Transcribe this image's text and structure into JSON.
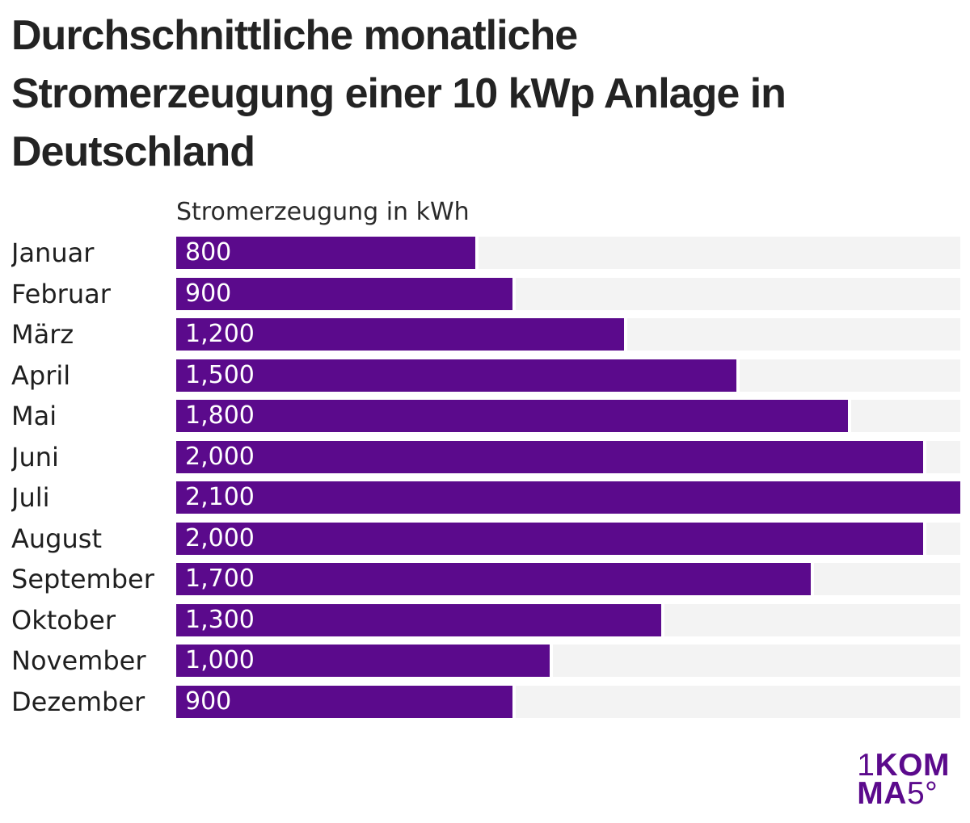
{
  "title_lines": [
    "Durchschnittliche monatliche",
    "Stromerzeugung einer 10 kWp Anlage in",
    "Deutschland"
  ],
  "chart_data": {
    "type": "bar",
    "orientation": "horizontal",
    "title": "Durchschnittliche monatliche Stromerzeugung einer 10 kWp Anlage in Deutschland",
    "xlabel": "Stromerzeugung in kWh",
    "ylabel": "",
    "categories": [
      "Januar",
      "Februar",
      "März",
      "April",
      "Mai",
      "Juni",
      "Juli",
      "August",
      "September",
      "Oktober",
      "November",
      "Dezember"
    ],
    "values": [
      800,
      900,
      1200,
      1500,
      1800,
      2000,
      2100,
      2000,
      1700,
      1300,
      1000,
      900
    ],
    "value_labels": [
      "800",
      "900",
      "1,200",
      "1,500",
      "1,800",
      "2,000",
      "2,100",
      "2,000",
      "1,700",
      "1,300",
      "1,000",
      "900"
    ],
    "xlim": [
      0,
      2100
    ],
    "grid": false,
    "legend": "none",
    "bar_color": "#5b0a8c",
    "track_color": "#f3f3f3",
    "value_label_color": "#ffffff"
  },
  "logo": {
    "line1_light": "1",
    "line1_bold": "KOM",
    "line2_bold": "MA",
    "line2_light": "5°",
    "color": "#5b0a8c"
  }
}
